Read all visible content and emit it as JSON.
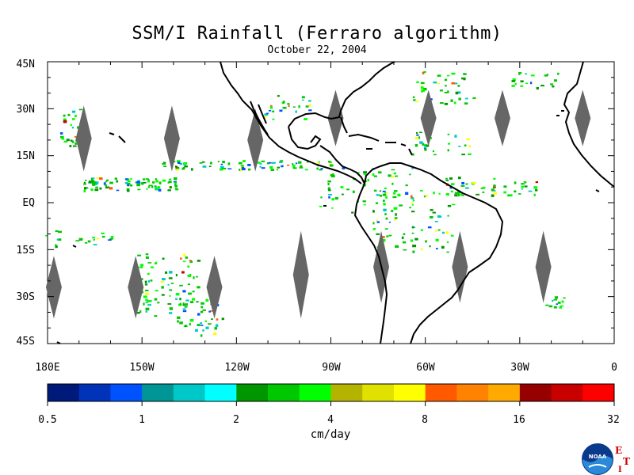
{
  "figure": {
    "title": "SSM/I Rainfall (Ferraro algorithm)",
    "date": "October 22, 2004"
  },
  "map": {
    "lat_labels": [
      "45N",
      "30N",
      "15N",
      "EQ",
      "15S",
      "30S",
      "45S"
    ],
    "lat_values": [
      45,
      30,
      15,
      0,
      -15,
      -30,
      -45
    ],
    "lon_labels": [
      "180E",
      "150W",
      "120W",
      "90W",
      "60W",
      "30W",
      "0"
    ],
    "lon_values": [
      -180,
      -150,
      -120,
      -90,
      -60,
      -30,
      0
    ],
    "lon_range": [
      -180,
      0
    ],
    "lat_range": [
      -45,
      45
    ],
    "land_color": "#000000",
    "no_data_color": "#666666",
    "gaps": [
      {
        "lon": -168.5,
        "lat": 10,
        "lat2": 31
      },
      {
        "lon": -140.5,
        "lat": 10,
        "lat2": 31
      },
      {
        "lon": -114,
        "lat": 10,
        "lat2": 30
      },
      {
        "lon": -88.5,
        "lat": 18,
        "lat2": 36
      },
      {
        "lon": -59,
        "lat": 18,
        "lat2": 36
      },
      {
        "lon": -35.5,
        "lat": 18,
        "lat2": 36
      },
      {
        "lon": -10,
        "lat": 18,
        "lat2": 36
      },
      {
        "lon": -178,
        "lat": -37,
        "lat2": -17
      },
      {
        "lon": -152,
        "lat": -37,
        "lat2": -17
      },
      {
        "lon": -127,
        "lat": -37,
        "lat2": -17
      },
      {
        "lon": -99.5,
        "lat": -37,
        "lat2": -9
      },
      {
        "lon": -74,
        "lat": -32,
        "lat2": -9
      },
      {
        "lon": -49,
        "lat": -32,
        "lat2": -9
      },
      {
        "lon": -22.5,
        "lat": -32,
        "lat2": -9
      }
    ]
  },
  "colorbar": {
    "ticks": [
      "0.5",
      "1",
      "2",
      "4",
      "8",
      "16",
      "32"
    ],
    "units": "cm/day",
    "colors": [
      "#001a7a",
      "#0033b8",
      "#0052ff",
      "#009696",
      "#00c8c8",
      "#00ffff",
      "#009600",
      "#00c800",
      "#00ff00",
      "#b4b400",
      "#e1e100",
      "#ffff00",
      "#ff5a00",
      "#ff8200",
      "#ffaa00",
      "#960000",
      "#c80000",
      "#ff0000"
    ]
  },
  "logo": {
    "agency": "NOAA",
    "letters": [
      "E",
      "T",
      "I"
    ]
  }
}
